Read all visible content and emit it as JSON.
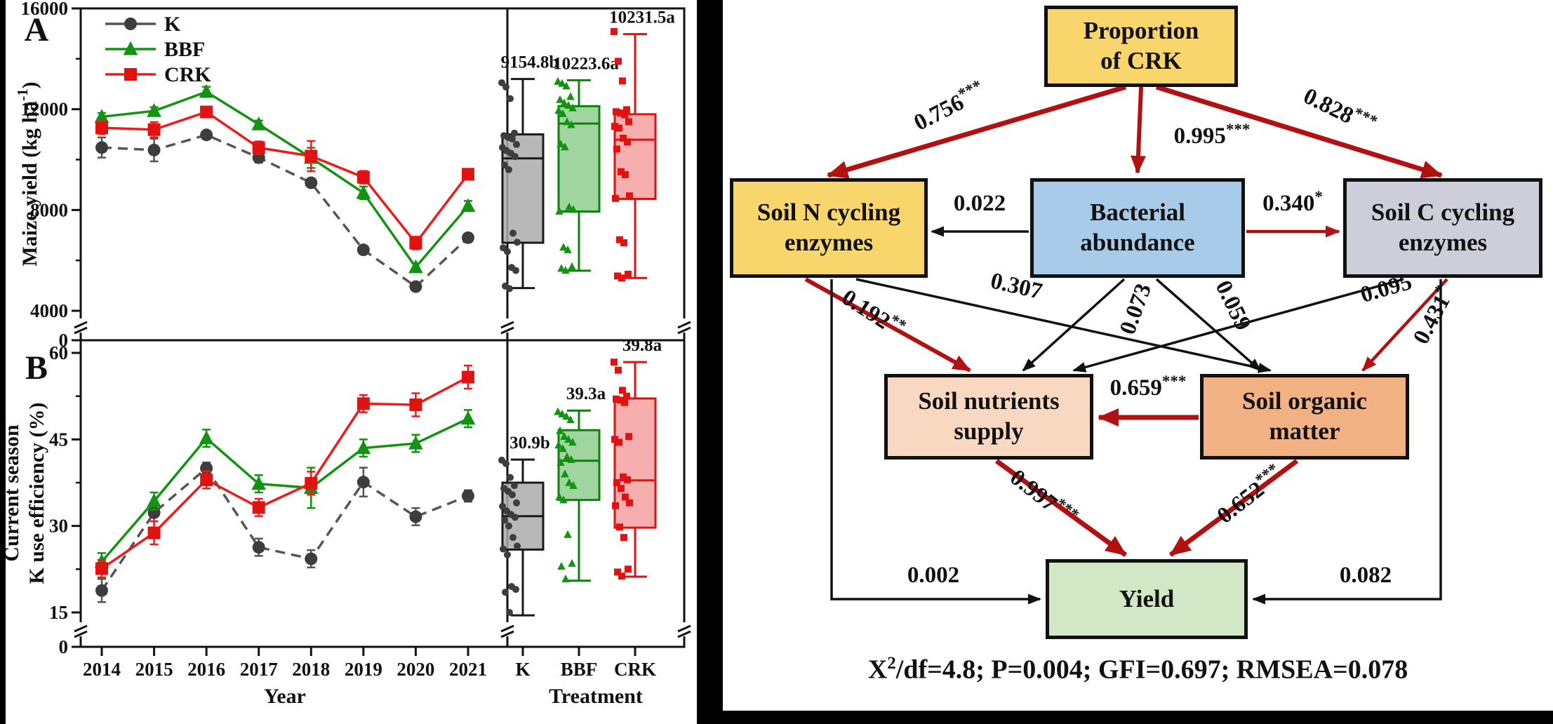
{
  "axes": {
    "x_title": "Year",
    "treatment_title": "Treatment",
    "years": [
      "2014",
      "2015",
      "2016",
      "2017",
      "2018",
      "2019",
      "2020",
      "2021"
    ],
    "treatments": [
      "K",
      "BBF",
      "CRK"
    ]
  },
  "chart_data": [
    {
      "id": "A",
      "type": "line+box",
      "panel_label": "A",
      "ylabel_parts": [
        "Maize yield (kg ha",
        "-1",
        ")"
      ],
      "yticks": [
        "16000",
        "12000",
        "8000",
        "4000"
      ],
      "ytick_values": [
        16000,
        12000,
        8000,
        4000
      ],
      "minor_ticks": [
        14000,
        10000,
        6000
      ],
      "yzero": "0",
      "ylim": [
        4000,
        16000
      ],
      "series": [
        {
          "name": "K",
          "marker": "circle",
          "color": "#555555",
          "marker_color": "#3D3D3D",
          "values": [
            10480,
            10380,
            10980,
            10080,
            9080,
            6420,
            4960,
            6900
          ],
          "errors": [
            400,
            450,
            150,
            200,
            150,
            150,
            120,
            150
          ]
        },
        {
          "name": "BBF",
          "marker": "triangle",
          "color": "#129312",
          "marker_color": "#129312",
          "values": [
            11700,
            11930,
            12690,
            11400,
            10070,
            8680,
            5730,
            8160
          ],
          "errors": [
            150,
            150,
            200,
            150,
            400,
            250,
            150,
            200
          ]
        },
        {
          "name": "CRK",
          "marker": "square",
          "color": "#EC1C1C",
          "marker_color": "#E01212",
          "values": [
            11260,
            11190,
            11890,
            10470,
            10140,
            9300,
            6690,
            9420
          ],
          "errors": [
            250,
            300,
            200,
            250,
            600,
            250,
            250,
            200
          ]
        }
      ],
      "boxes": [
        {
          "name": "K",
          "mean_label": "9154.8b",
          "low": 4900,
          "q1": 6700,
          "median": 10050,
          "q3": 11000,
          "high": 13200,
          "fill": "#ABABAB",
          "stroke": "#1A1A1A",
          "point_color": "#3D3D3D",
          "marker": "circle",
          "points": [
            13050,
            12880,
            12420,
            11050,
            10950,
            10880,
            10820,
            10600,
            10480,
            10350,
            10250,
            10120,
            9780,
            9600,
            7080,
            6720,
            6500,
            6350,
            5720,
            5600,
            4980,
            4880
          ]
        },
        {
          "name": "BBF",
          "mean_label": "10223.6a",
          "low": 5590,
          "q1": 7940,
          "median": 11430,
          "q3": 12120,
          "high": 13150,
          "fill": "#8FCE8F",
          "stroke": "#0F7F0F",
          "point_color": "#129312",
          "marker": "triangle",
          "points": [
            13100,
            13020,
            12920,
            12500,
            12380,
            12250,
            12150,
            12050,
            11950,
            11820,
            11500,
            11380,
            10620,
            10500,
            8120,
            8020,
            7950,
            6520,
            6420,
            5750,
            5680,
            5600
          ]
        },
        {
          "name": "CRK",
          "mean_label": "10231.5a",
          "low": 5300,
          "q1": 8440,
          "median": 10790,
          "q3": 11800,
          "high": 14980,
          "fill": "#F4A0A0",
          "stroke": "#E01212",
          "point_color": "#E01212",
          "marker": "square",
          "points": [
            15080,
            13900,
            13120,
            11980,
            11900,
            11850,
            11780,
            11500,
            11320,
            11250,
            10850,
            10700,
            10420,
            9520,
            9400,
            8560,
            8460,
            6820,
            6700,
            5450,
            5380,
            5300
          ]
        }
      ]
    },
    {
      "id": "B",
      "type": "line+box",
      "panel_label": "B",
      "ylabel_lines": [
        "Current season",
        "K use efficiency (%)"
      ],
      "yticks": [
        "60",
        "45",
        "30",
        "15"
      ],
      "ytick_values": [
        60,
        45,
        30,
        15
      ],
      "minor_ticks": [
        52.5,
        37.5,
        22.5
      ],
      "yzero": "0",
      "ylim": [
        15,
        60
      ],
      "series": [
        {
          "name": "K",
          "marker": "circle",
          "color": "#555555",
          "marker_color": "#3D3D3D",
          "values": [
            18.8,
            32.3,
            40.0,
            26.3,
            24.3,
            37.6,
            31.6,
            35.2
          ],
          "errors": [
            2,
            1.5,
            1,
            1.5,
            1.5,
            2.5,
            1.5,
            1
          ]
        },
        {
          "name": "BBF",
          "marker": "triangle",
          "color": "#129312",
          "marker_color": "#129312",
          "values": [
            23.8,
            34.3,
            45.2,
            37.3,
            36.6,
            43.5,
            44.3,
            48.6
          ],
          "errors": [
            1.5,
            1.5,
            1.5,
            1.5,
            3.5,
            1.5,
            1.5,
            1.5
          ]
        },
        {
          "name": "CRK",
          "marker": "square",
          "color": "#EC1C1C",
          "marker_color": "#E01212",
          "values": [
            22.6,
            28.8,
            38.0,
            33.2,
            37.4,
            51.2,
            51.0,
            55.8
          ],
          "errors": [
            1.5,
            2,
            1.5,
            1.5,
            2,
            1.5,
            2,
            2
          ]
        }
      ],
      "boxes": [
        {
          "name": "K",
          "mean_label": "30.9b",
          "low": 14.5,
          "q1": 25.9,
          "median": 31.7,
          "q3": 37.5,
          "high": 41.5,
          "fill": "#ABABAB",
          "stroke": "#1A1A1A",
          "point_color": "#3D3D3D",
          "marker": "circle",
          "points": [
            41.4,
            40.8,
            38.4,
            37.0,
            36.5,
            36.0,
            35.4,
            34.0,
            33.4,
            32.6,
            32.0,
            31.5,
            31.0,
            30.0,
            28.0,
            26.5,
            26.0,
            25.0,
            19.5,
            19.0,
            18.5,
            15.0
          ]
        },
        {
          "name": "BBF",
          "mean_label": "39.3a",
          "low": 20.5,
          "q1": 34.5,
          "median": 41.3,
          "q3": 46.6,
          "high": 50.0,
          "fill": "#8FCE8F",
          "stroke": "#0F7F0F",
          "point_color": "#129312",
          "marker": "triangle",
          "points": [
            49.8,
            49.4,
            49.0,
            48.4,
            46.5,
            45.5,
            45.0,
            44.5,
            44.0,
            43.4,
            42.0,
            41.5,
            41.0,
            39.0,
            37.5,
            37.0,
            35.0,
            34.5,
            28.5,
            23.5,
            23.0,
            20.8
          ]
        },
        {
          "name": "CRK",
          "mean_label": "39.8a",
          "low": 21.2,
          "q1": 29.7,
          "median": 37.9,
          "q3": 52.1,
          "high": 58.4,
          "fill": "#F4A0A0",
          "stroke": "#E01212",
          "point_color": "#E01212",
          "marker": "square",
          "points": [
            58.4,
            57.0,
            53.5,
            52.5,
            52.0,
            51.8,
            51.4,
            45.5,
            45.0,
            44.5,
            38.5,
            38.0,
            37.5,
            36.5,
            35.0,
            34.0,
            33.5,
            29.8,
            28.0,
            22.5,
            22.0,
            21.3
          ]
        }
      ]
    }
  ],
  "sem": {
    "colors": {
      "significant": "#B11111",
      "ns": "#111111",
      "border": "#111111"
    },
    "boxes": [
      {
        "id": "crk",
        "lines": [
          "Proportion",
          "of CRK"
        ],
        "fill": "#F9D66B"
      },
      {
        "id": "soiln",
        "lines": [
          "Soil N cycling",
          "enzymes"
        ],
        "fill": "#F9D66B"
      },
      {
        "id": "bact",
        "lines": [
          "Bacterial",
          "abundance"
        ],
        "fill": "#A9CBEA"
      },
      {
        "id": "soilc",
        "lines": [
          "Soil C cycling",
          "enzymes"
        ],
        "fill": "#CECEDA"
      },
      {
        "id": "nutrients",
        "lines": [
          "Soil nutrients",
          "supply"
        ],
        "fill": "#F8D8C0"
      },
      {
        "id": "som",
        "lines": [
          "Soil organic",
          "matter"
        ],
        "fill": "#F2B183"
      },
      {
        "id": "yield",
        "lines": [
          "Yield"
        ],
        "fill": "#D2E7C6"
      }
    ],
    "paths": [
      {
        "id": "crk-soiln",
        "value": "0.756",
        "stars": "***",
        "sig": true,
        "weight": "thick"
      },
      {
        "id": "crk-bact",
        "value": "0.995",
        "stars": "***",
        "sig": true,
        "weight": "medium"
      },
      {
        "id": "crk-soilc",
        "value": "0.828",
        "stars": "***",
        "sig": true,
        "weight": "thick"
      },
      {
        "id": "bact-soiln",
        "value": "0.022",
        "stars": "",
        "sig": false,
        "weight": "black"
      },
      {
        "id": "bact-soilc",
        "value": "0.340",
        "stars": "*",
        "sig": true,
        "weight": "thin"
      },
      {
        "id": "soiln-nutrients",
        "value": "0.192",
        "stars": "**",
        "sig": true,
        "weight": "medium"
      },
      {
        "id": "soiln-som",
        "value": "0.307",
        "stars": "",
        "sig": false,
        "weight": "black"
      },
      {
        "id": "bact-nutrients",
        "value": "0.073",
        "stars": "",
        "sig": false,
        "weight": "black"
      },
      {
        "id": "bact-som",
        "value": "0.059",
        "stars": "",
        "sig": false,
        "weight": "black"
      },
      {
        "id": "soilc-nutrients",
        "value": "0.095",
        "stars": "",
        "sig": false,
        "weight": "black"
      },
      {
        "id": "soilc-som",
        "value": "0.431",
        "stars": "*",
        "sig": true,
        "weight": "thin"
      },
      {
        "id": "som-nutrients",
        "value": "0.659",
        "stars": "***",
        "sig": true,
        "weight": "thick"
      },
      {
        "id": "nutrients-yield",
        "value": "0.997",
        "stars": "***",
        "sig": true,
        "weight": "thick"
      },
      {
        "id": "som-yield",
        "value": "0.652",
        "stars": "***",
        "sig": true,
        "weight": "thick"
      },
      {
        "id": "soiln-yield",
        "value": "0.002",
        "stars": "",
        "sig": false,
        "weight": "black"
      },
      {
        "id": "soilc-yield",
        "value": "0.082",
        "stars": "",
        "sig": false,
        "weight": "black"
      }
    ],
    "fit": {
      "x": "X",
      "sup": "2",
      "rest": "/df=4.8; P=0.004; GFI=0.697; RMSEA=0.078"
    }
  }
}
